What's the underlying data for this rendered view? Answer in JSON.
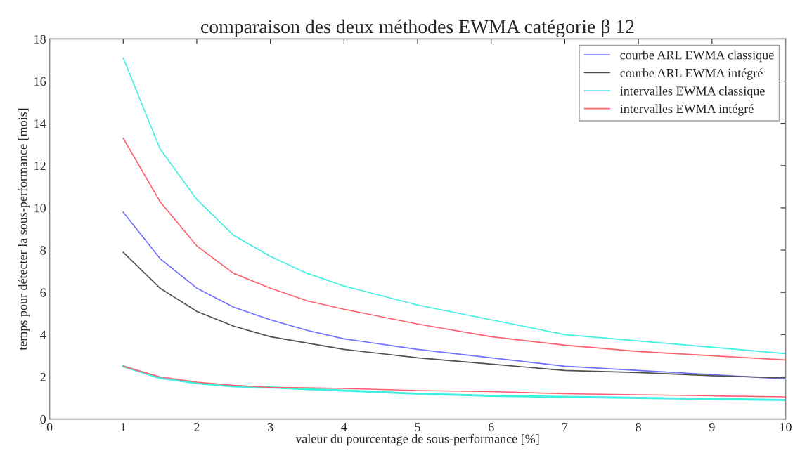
{
  "chart_data": {
    "type": "line",
    "title": "comparaison des deux méthodes EWMA catégorie β 12",
    "xlabel": "valeur du pourcentage de sous-performance [%]",
    "ylabel": "temps pour détecter la sous-performance [mois]",
    "x": [
      1,
      1.5,
      2,
      2.5,
      3,
      3.5,
      4,
      5,
      6,
      7,
      8,
      9,
      10
    ],
    "series": [
      {
        "name": "courbe ARL EWMA classique",
        "color": "#7070ff",
        "values": [
          9.8,
          7.6,
          6.2,
          5.3,
          4.7,
          4.2,
          3.8,
          3.3,
          2.9,
          2.5,
          2.3,
          2.1,
          1.9
        ]
      },
      {
        "name": "courbe ARL EWMA intégré",
        "color": "#505050",
        "values": [
          7.9,
          6.2,
          5.1,
          4.4,
          3.9,
          3.6,
          3.3,
          2.9,
          2.6,
          2.3,
          2.2,
          2.05,
          1.95
        ]
      },
      {
        "name": "intervalles EWMA classique",
        "color": "#40f0e0",
        "values": [
          17.1,
          12.8,
          10.4,
          8.7,
          7.7,
          6.9,
          6.3,
          5.4,
          4.7,
          4.0,
          3.7,
          3.4,
          3.1
        ]
      },
      {
        "name": "intervalles EWMA intégré",
        "color": "#ff6070",
        "values": [
          13.3,
          10.3,
          8.2,
          6.9,
          6.2,
          5.6,
          5.2,
          4.5,
          3.9,
          3.5,
          3.2,
          3.0,
          2.8
        ]
      },
      {
        "color": "#40f0e0",
        "values": [
          2.5,
          1.95,
          1.7,
          1.55,
          1.5,
          1.42,
          1.35,
          1.2,
          1.1,
          1.05,
          1.0,
          0.95,
          0.9
        ]
      },
      {
        "color": "#ff6070",
        "values": [
          2.5,
          2.0,
          1.75,
          1.6,
          1.5,
          1.48,
          1.45,
          1.35,
          1.3,
          1.2,
          1.15,
          1.1,
          1.05
        ]
      }
    ],
    "xlim": [
      0,
      10
    ],
    "ylim": [
      0,
      18
    ],
    "xticks": [
      0,
      1,
      2,
      3,
      4,
      5,
      6,
      7,
      8,
      9,
      10
    ],
    "yticks": [
      0,
      2,
      4,
      6,
      8,
      10,
      12,
      14,
      16,
      18
    ],
    "grid": false,
    "legend": "top right",
    "marker": "none",
    "line_style": "solid"
  }
}
